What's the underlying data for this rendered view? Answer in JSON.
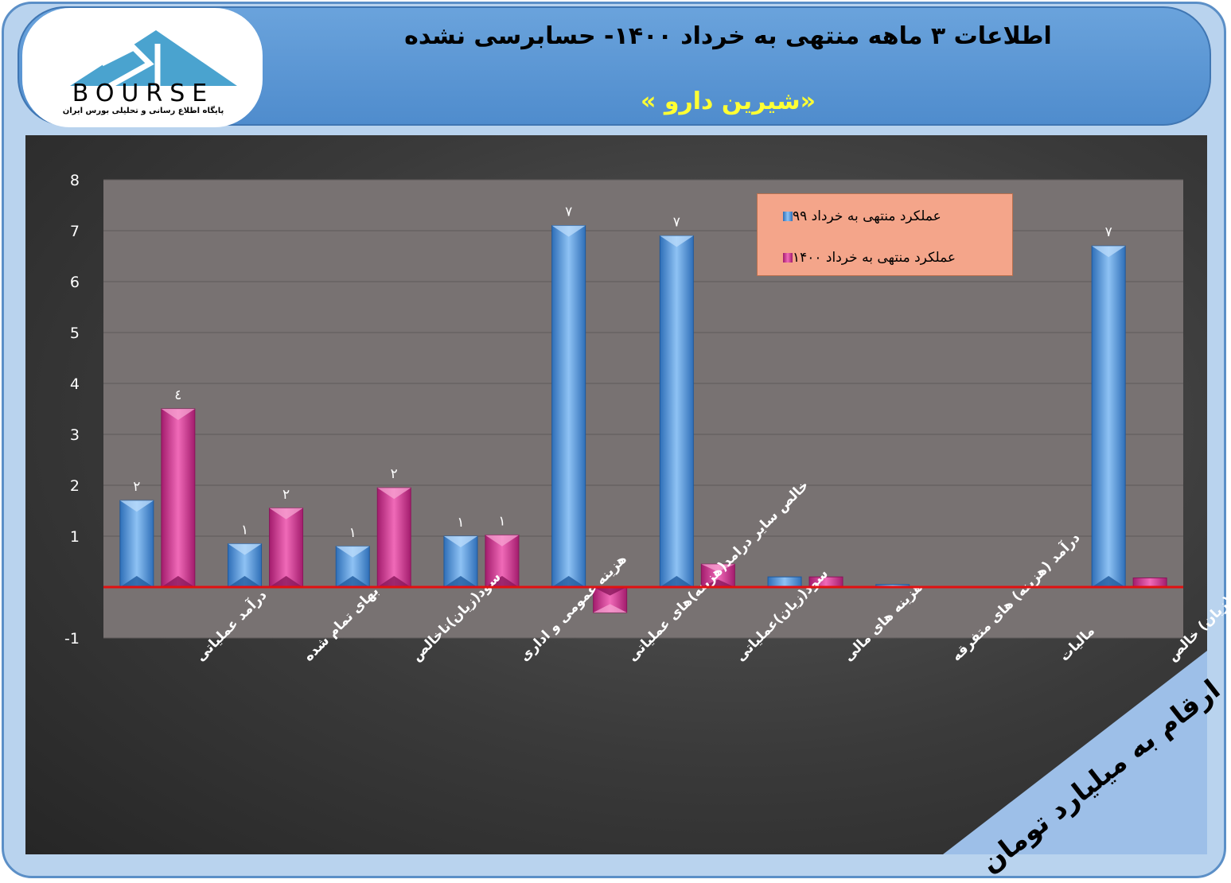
{
  "header": {
    "title": "اطلاعات ۳ ماهه منتهی به خرداد ۱۴۰۰- حسابرسی نشده",
    "subtitle": "«شیرین دارو »"
  },
  "logo": {
    "brand": "BOURSE",
    "tagline": "پایگاه اطلاع رسانی و تحلیلی بورس ایران"
  },
  "corner_note": "ارقام به میلیارد تومان",
  "colors": {
    "series_99": "#4f8fd6",
    "series_1400": "#d6338f",
    "zero_line": "#e21010",
    "corner_banner": "#9dbfe8"
  },
  "chart_data": {
    "type": "bar",
    "categories": [
      "درآمد عملیاتی",
      "بهای تمام شده",
      "سود(زیان)ناخالص",
      "هزینه عمومی و اداری",
      "خالص سایر درامد(هزینه)های عملیاتی",
      "سود(زیان)عملیاتی",
      "هزینه های مالی",
      "درآمد (هزینه) های متفرقه",
      "مالیات",
      "سود(زیان) خالص"
    ],
    "series": [
      {
        "name": "عملکرد منتهی به خرداد ۹۹",
        "values": [
          1.7,
          0.85,
          0.8,
          1.0,
          7.1,
          6.9,
          0.2,
          0.05,
          0.0,
          6.7
        ],
        "data_labels": [
          "٢",
          "١",
          "١",
          "١",
          "٧",
          "٧",
          "",
          "",
          "",
          "٧"
        ]
      },
      {
        "name": "عملکرد منتهی به خرداد ۱۴۰۰",
        "values": [
          3.5,
          1.55,
          1.95,
          1.02,
          -0.5,
          0.45,
          0.2,
          0.0,
          0.0,
          0.18
        ],
        "data_labels": [
          "٤",
          "٢",
          "٢",
          "١",
          "",
          "",
          "",
          "",
          "",
          ""
        ]
      }
    ],
    "y_ticks": [
      "-1",
      "1",
      "2",
      "3",
      "4",
      "5",
      "6",
      "7",
      "8"
    ],
    "ylim": [
      -1,
      8
    ],
    "grid": true,
    "legend_position": "top-right"
  }
}
